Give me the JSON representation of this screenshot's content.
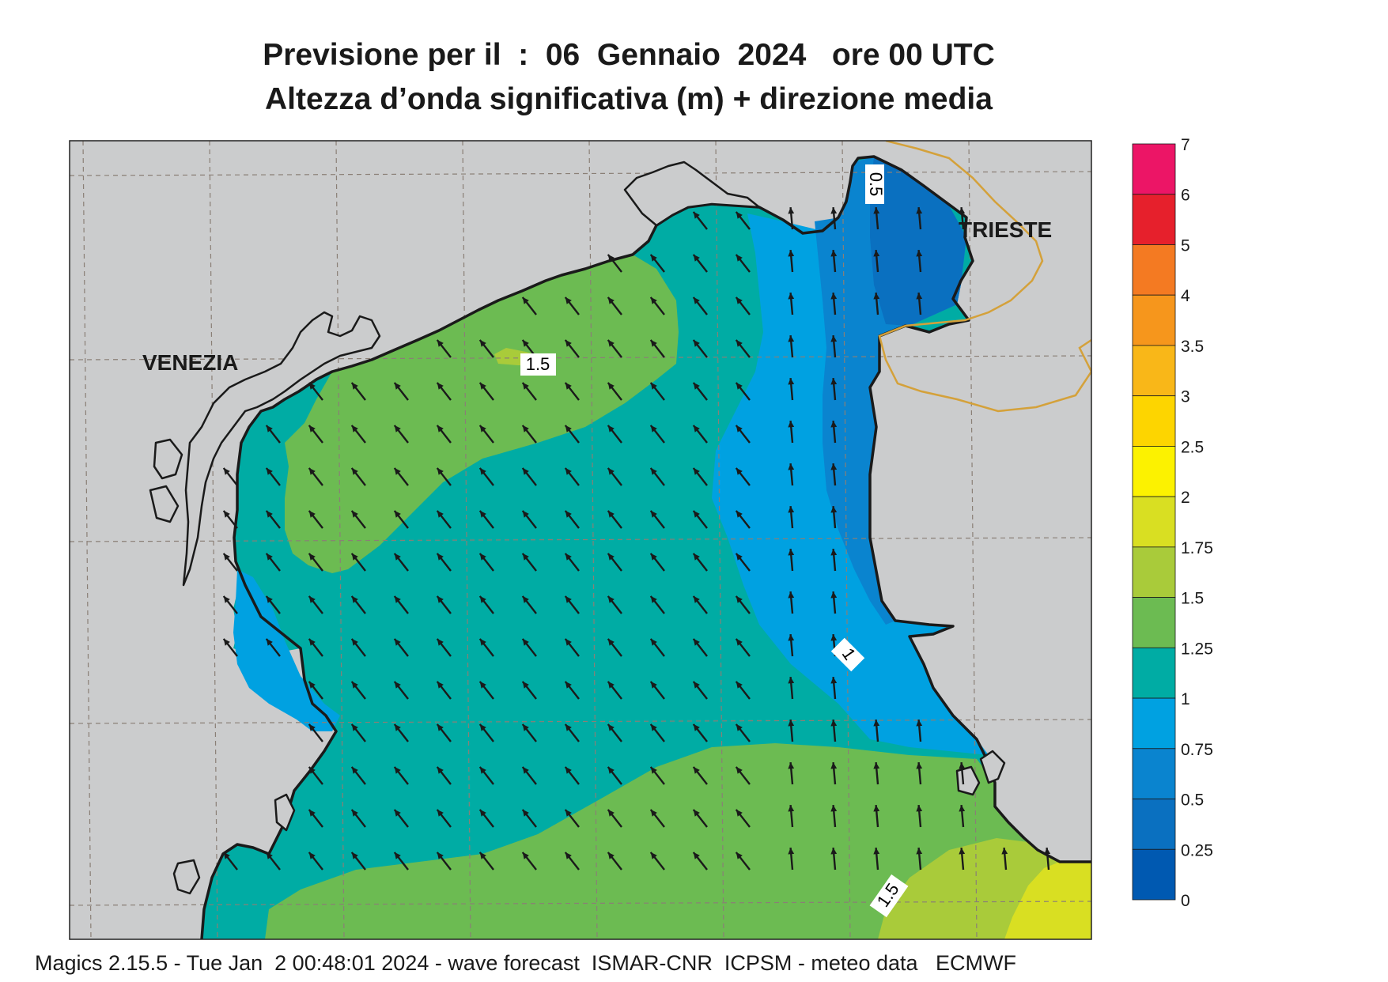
{
  "title_line1": "Previsione per il  :  06  Gennaio  2024   ore 00 UTC",
  "title_line2": "Altezza d’onda significativa (m) + direzione media",
  "footer": "Magics 2.15.5 - Tue Jan  2 00:48:01 2024 - wave forecast  ISMAR-CNR  ICPSM - meteo data   ECMWF",
  "places": [
    {
      "name": "VENEZIA"
    },
    {
      "name": "TRIESTE"
    }
  ],
  "contour_labels": [
    "0.5",
    "1.5",
    "1",
    "1.5"
  ],
  "legend": {
    "levels": [
      "7",
      "6",
      "5",
      "4",
      "3.5",
      "3",
      "2.5",
      "2",
      "1.75",
      "1.5",
      "1.25",
      "1",
      "0.75",
      "0.5",
      "0.25",
      "0"
    ],
    "colors": [
      "#ec1566",
      "#e6202c",
      "#f47a22",
      "#f6961c",
      "#f9b718",
      "#fdd500",
      "#fcf200",
      "#d9df22",
      "#a9cb3a",
      "#6cbb52",
      "#00aca4",
      "#00a1e1",
      "#0a84cf",
      "#0a70c0",
      "#0059b1"
    ]
  },
  "colors": {
    "land": "#cbcccd",
    "coast": "#1a1a1a",
    "border": "#d4a13a",
    "grid": "#8a7f76",
    "arrow": "#1a1a1a"
  },
  "arrow_direction_icon": "arrow-north-northwest-icon"
}
